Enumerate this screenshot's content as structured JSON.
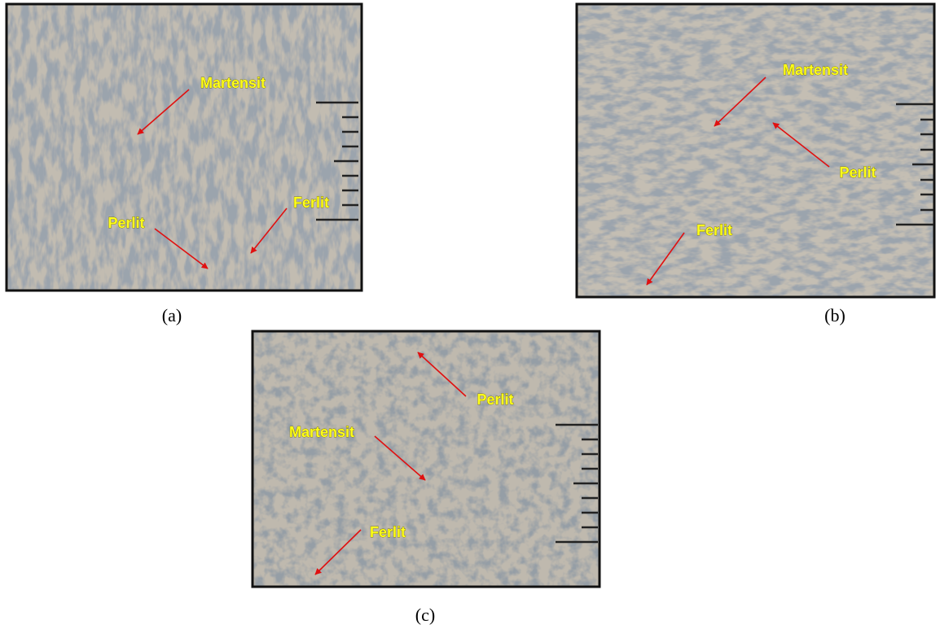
{
  "panels": [
    {
      "caption": "(a)",
      "labels": [
        "Martensit",
        "Perlit",
        "Ferlit"
      ]
    },
    {
      "caption": "(b)",
      "labels": [
        "Martensit",
        "Perlit",
        "Ferlit"
      ]
    },
    {
      "caption": "(c)",
      "labels": [
        "Perlit",
        "Martensit",
        "Ferlit"
      ]
    }
  ]
}
